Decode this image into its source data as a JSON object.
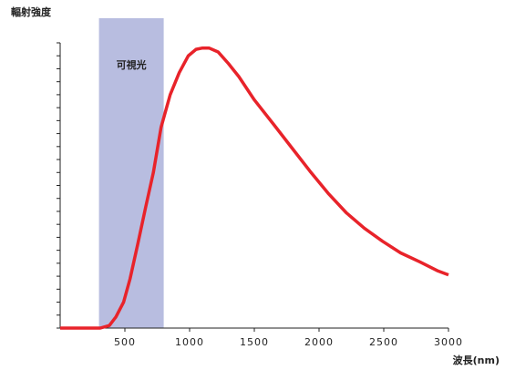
{
  "chart_data": {
    "type": "line",
    "y_axis_label": "輻射強度",
    "x_axis_label": "波長(nm)",
    "x": [
      0,
      310,
      380,
      430,
      490,
      540,
      600,
      660,
      720,
      780,
      850,
      920,
      990,
      1050,
      1100,
      1150,
      1220,
      1300,
      1380,
      1500,
      1650,
      1790,
      1930,
      2070,
      2210,
      2350,
      2490,
      2630,
      2780,
      2920,
      3000
    ],
    "values": [
      0,
      0,
      0.2,
      0.85,
      2.0,
      3.8,
      6.5,
      9.3,
      12,
      15.5,
      18,
      19.7,
      21,
      21.5,
      21.6,
      21.6,
      21.3,
      20.4,
      19.4,
      17.6,
      15.7,
      13.9,
      12.1,
      10.4,
      8.9,
      7.7,
      6.7,
      5.8,
      5.1,
      4.4,
      4.1
    ],
    "color": "#e8232a",
    "shaded_region": {
      "x": [
        300,
        800
      ],
      "label": "可視光",
      "color": "#b8bde0"
    },
    "xlim": [
      0,
      3000
    ],
    "xticks": [
      500,
      1000,
      1500,
      2000,
      2500,
      3000
    ],
    "ylim": [
      0,
      22
    ],
    "yticks": [
      0,
      1,
      2,
      3,
      4,
      5,
      6,
      7,
      8,
      9,
      10,
      11,
      12,
      13,
      14,
      15,
      16,
      17,
      18,
      19,
      20,
      21,
      22
    ]
  }
}
